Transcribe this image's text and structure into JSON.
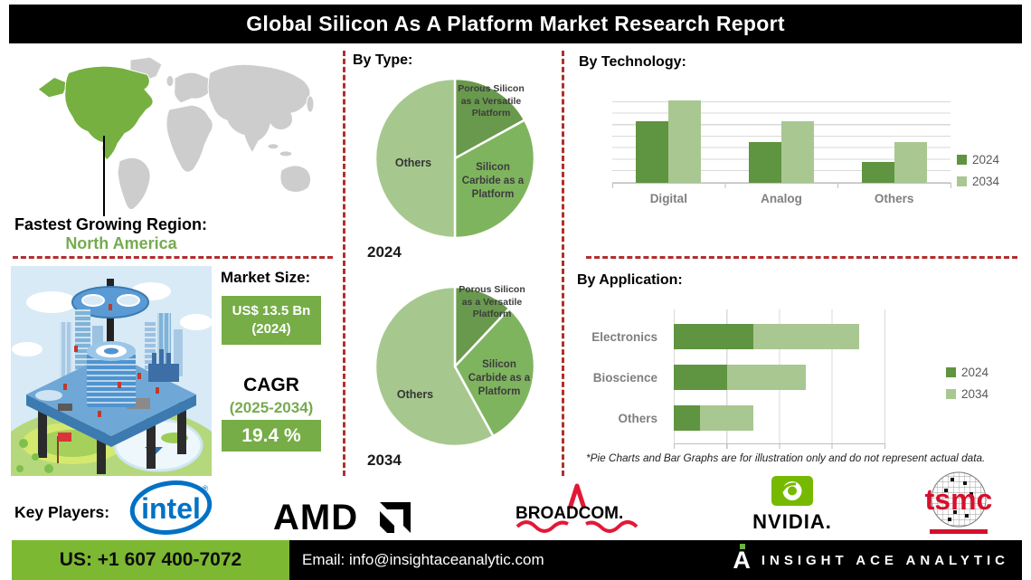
{
  "title": "Global Silicon As A Platform Market Research Report",
  "map": {
    "label": "Fastest Growing Region:",
    "region": "North America"
  },
  "market": {
    "size_label": "Market Size:",
    "size_line1": "US$ 13.5 Bn",
    "size_line2": "(2024)",
    "cagr_label": "CAGR",
    "cagr_period": "(2025-2034)",
    "cagr_value": "19.4 %"
  },
  "key_players": {
    "label": "Key Players:",
    "companies": [
      "intel",
      "AMD",
      "BROADCOM.",
      "NVIDIA.",
      "tsmc"
    ]
  },
  "footnote": "*Pie Charts and Bar Graphs are for illustration only and do not represent actual data.",
  "footer": {
    "phone": "US: +1 607 400-7072",
    "email": "Email: info@insightaceanalytic.com",
    "brand": "INSIGHT ACE ANALYTIC"
  },
  "colors": {
    "pie_dark_green": "#69994d",
    "pie_mid_green": "#7fb45f",
    "pie_light_green": "#a6c88e",
    "bar_2024_green": "#5f9440",
    "bar_2034_green": "#a9c791",
    "region_green": "#76b041",
    "box_green": "#76ad47",
    "footer_green": "#7cb832",
    "dashed_red": "#b22e2e"
  },
  "chart_data": [
    {
      "type": "pie",
      "id": "pie2024",
      "section_title": "By Type:",
      "year_label": "2024",
      "slices": [
        {
          "label": "Porous Silicon as a Versatile Platform",
          "value": 17,
          "color": "#69994d"
        },
        {
          "label": "Silicon Carbide as a Platform",
          "value": 33,
          "color": "#7fb45f"
        },
        {
          "label": "Others",
          "value": 50,
          "color": "#a6c88e"
        }
      ]
    },
    {
      "type": "pie",
      "id": "pie2034",
      "section_title": "By Type:",
      "year_label": "2034",
      "slices": [
        {
          "label": "Porous Silicon as a Versatile Platform",
          "value": 12,
          "color": "#69994d"
        },
        {
          "label": "Silicon Carbide as a Platform",
          "value": 30,
          "color": "#7fb45f"
        },
        {
          "label": "Others",
          "value": 58,
          "color": "#a6c88e"
        }
      ]
    },
    {
      "type": "bar",
      "id": "tech",
      "section_title": "By Technology:",
      "categories": [
        "Digital",
        "Analog",
        "Others"
      ],
      "series": [
        {
          "name": "2024",
          "color": "#5f9440",
          "values": [
            60,
            40,
            20
          ]
        },
        {
          "name": "2034",
          "color": "#a9c791",
          "values": [
            80,
            60,
            40
          ]
        }
      ],
      "ylim": [
        0,
        90
      ],
      "grid": "horizontal",
      "legend_position": "right"
    },
    {
      "type": "stacked-bar-horizontal",
      "id": "app",
      "section_title": "By Application:",
      "categories": [
        "Electronics",
        "Bioscience",
        "Others"
      ],
      "series": [
        {
          "name": "2024",
          "color": "#5f9440",
          "values": [
            30,
            20,
            10
          ]
        },
        {
          "name": "2034",
          "color": "#a9c791",
          "values": [
            40,
            30,
            20
          ]
        }
      ],
      "xlim": [
        0,
        80
      ],
      "grid": "vertical",
      "legend_position": "right"
    }
  ]
}
